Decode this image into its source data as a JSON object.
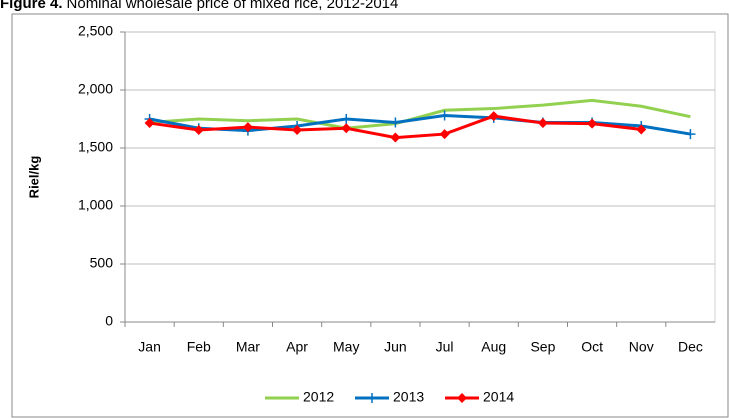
{
  "chart_data": {
    "type": "line",
    "figure_label": "Figure 4.",
    "title": "Nominal wholesale price of mixed rice, 2012-2014",
    "ylabel": "Riel/kg",
    "categories": [
      "Jan",
      "Feb",
      "Mar",
      "Apr",
      "May",
      "Jun",
      "Jul",
      "Aug",
      "Sep",
      "Oct",
      "Nov",
      "Dec"
    ],
    "series": [
      {
        "name": "2012",
        "color": "#92d050",
        "marker": "none",
        "values": [
          1720,
          1750,
          1735,
          1750,
          1670,
          1710,
          1825,
          1840,
          1870,
          1910,
          1860,
          1770
        ]
      },
      {
        "name": "2013",
        "color": "#0070c0",
        "marker": "plus",
        "values": [
          1750,
          1670,
          1650,
          1690,
          1750,
          1720,
          1780,
          1760,
          1720,
          1720,
          1690,
          1620
        ]
      },
      {
        "name": "2014",
        "color": "#ff0000",
        "marker": "diamond",
        "values": [
          1715,
          1655,
          1680,
          1655,
          1670,
          1590,
          1620,
          1775,
          1715,
          1710,
          1660,
          null
        ]
      }
    ],
    "ylim": [
      0,
      2500
    ],
    "yticks": [
      0,
      500,
      {
        "value": 1000,
        "label": "1,000"
      },
      {
        "value": 1500,
        "label": "1,500"
      },
      {
        "value": 2000,
        "label": "2,000"
      },
      {
        "value": 2500,
        "label": "2,500"
      }
    ],
    "grid": true,
    "legend": "bottom"
  }
}
